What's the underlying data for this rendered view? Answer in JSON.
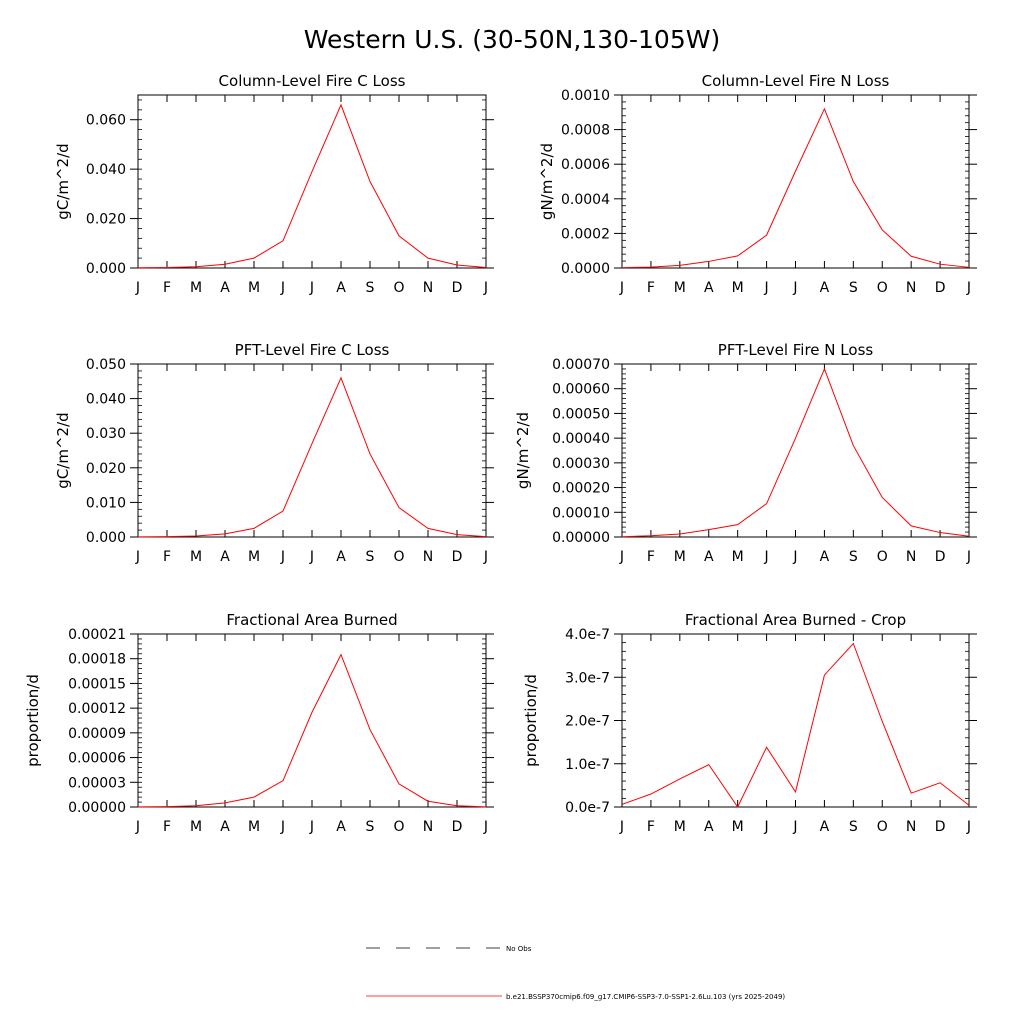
{
  "figure": {
    "title": "Western U.S. (30-50N,130-105W)"
  },
  "legend": {
    "entries": [
      {
        "label": "No Obs",
        "color": "#000000",
        "style": "dashed"
      },
      {
        "label": "b.e21.BSSP370cmip6.f09_g17.CMIP6-SSP3-7.0-SSP1-2.6Lu.103 (yrs 2025-2049)",
        "color": "#ff0000",
        "style": "solid"
      }
    ]
  },
  "chart_data": [
    {
      "type": "line",
      "title": "Column-Level Fire C Loss",
      "ylabel": "gC/m^2/d",
      "ylim": [
        0,
        0.07
      ],
      "yticks": [
        0.0,
        0.02,
        0.04,
        0.06
      ],
      "ytick_labels": [
        "0.000",
        "0.020",
        "0.040",
        "0.060"
      ],
      "xtick_labels": [
        "J",
        "F",
        "M",
        "A",
        "M",
        "J",
        "J",
        "A",
        "S",
        "O",
        "N",
        "D",
        "J"
      ],
      "series": [
        {
          "color": "#ff0000",
          "values": [
            0.0001,
            0.0002,
            0.0005,
            0.0015,
            0.004,
            0.011,
            0.039,
            0.066,
            0.035,
            0.013,
            0.004,
            0.0012,
            0.0002
          ]
        }
      ]
    },
    {
      "type": "line",
      "title": "Column-Level Fire N Loss",
      "ylabel": "gN/m^2/d",
      "ylim": [
        0,
        0.001
      ],
      "yticks": [
        0.0,
        0.0002,
        0.0004,
        0.0006,
        0.0008,
        0.001
      ],
      "ytick_labels": [
        "0.0000",
        "0.0002",
        "0.0004",
        "0.0006",
        "0.0008",
        "0.0010"
      ],
      "xtick_labels": [
        "J",
        "F",
        "M",
        "A",
        "M",
        "J",
        "J",
        "A",
        "S",
        "O",
        "N",
        "D",
        "J"
      ],
      "series": [
        {
          "color": "#ff0000",
          "values": [
            2e-06,
            5e-06,
            1.5e-05,
            3.8e-05,
            7e-05,
            0.00019,
            0.00056,
            0.00092,
            0.0005,
            0.00022,
            6.8e-05,
            2.2e-05,
            4e-06
          ]
        }
      ]
    },
    {
      "type": "line",
      "title": "PFT-Level Fire C Loss",
      "ylabel": "gC/m^2/d",
      "ylim": [
        0,
        0.05
      ],
      "yticks": [
        0.0,
        0.01,
        0.02,
        0.03,
        0.04,
        0.05
      ],
      "ytick_labels": [
        "0.000",
        "0.010",
        "0.020",
        "0.030",
        "0.040",
        "0.050"
      ],
      "xtick_labels": [
        "J",
        "F",
        "M",
        "A",
        "M",
        "J",
        "J",
        "A",
        "S",
        "O",
        "N",
        "D",
        "J"
      ],
      "series": [
        {
          "color": "#ff0000",
          "values": [
            5e-05,
            0.0001,
            0.0003,
            0.0009,
            0.0025,
            0.0075,
            0.027,
            0.046,
            0.024,
            0.0085,
            0.0025,
            0.0007,
            0.0001
          ]
        }
      ]
    },
    {
      "type": "line",
      "title": "PFT-Level Fire N Loss",
      "ylabel": "gN/m^2/d",
      "ylim": [
        0,
        0.0007
      ],
      "yticks": [
        0.0,
        0.0001,
        0.0002,
        0.0003,
        0.0004,
        0.0005,
        0.0006,
        0.0007
      ],
      "ytick_labels": [
        "0.00000",
        "0.00010",
        "0.00020",
        "0.00030",
        "0.00040",
        "0.00050",
        "0.00060",
        "0.00070"
      ],
      "xtick_labels": [
        "J",
        "F",
        "M",
        "A",
        "M",
        "J",
        "J",
        "A",
        "S",
        "O",
        "N",
        "D",
        "J"
      ],
      "series": [
        {
          "color": "#ff0000",
          "values": [
            1e-06,
            5e-06,
            1.2e-05,
            3e-05,
            5e-05,
            0.000135,
            0.0004,
            0.00068,
            0.00037,
            0.00016,
            4.5e-05,
            1.8e-05,
            3e-06
          ]
        }
      ]
    },
    {
      "type": "line",
      "title": "Fractional Area Burned",
      "ylabel": "proportion/d",
      "ylim": [
        0,
        0.00021
      ],
      "yticks": [
        0.0,
        3e-05,
        6e-05,
        9e-05,
        0.00012,
        0.00015,
        0.00018,
        0.00021
      ],
      "ytick_labels": [
        "0.00000",
        "0.00003",
        "0.00006",
        "0.00009",
        "0.00012",
        "0.00015",
        "0.00018",
        "0.00021"
      ],
      "xtick_labels": [
        "J",
        "F",
        "M",
        "A",
        "M",
        "J",
        "J",
        "A",
        "S",
        "O",
        "N",
        "D",
        "J"
      ],
      "series": [
        {
          "color": "#ff0000",
          "values": [
            2e-07,
            5e-07,
            1.5e-06,
            5e-06,
            1.2e-05,
            3.2e-05,
            0.000115,
            0.000185,
            9.4e-05,
            2.8e-05,
            7e-06,
            1.5e-06,
            2e-07
          ]
        }
      ]
    },
    {
      "type": "line",
      "title": "Fractional Area Burned - Crop",
      "ylabel": "proportion/d",
      "ylim": [
        0,
        4e-07
      ],
      "yticks": [
        0.0,
        1e-07,
        2e-07,
        3e-07,
        4e-07
      ],
      "ytick_labels": [
        "0.0e-7",
        "1.0e-7",
        "2.0e-7",
        "3.0e-7",
        "4.0e-7"
      ],
      "xtick_labels": [
        "J",
        "F",
        "M",
        "A",
        "M",
        "J",
        "J",
        "A",
        "S",
        "O",
        "N",
        "D",
        "J"
      ],
      "series": [
        {
          "color": "#ff0000",
          "values": [
            6e-09,
            3e-08,
            6.5e-08,
            9.8e-08,
            0.0,
            1.38e-07,
            3.5e-08,
            3.05e-07,
            3.78e-07,
            1.98e-07,
            3.2e-08,
            5.6e-08,
            4e-09
          ]
        }
      ]
    }
  ]
}
